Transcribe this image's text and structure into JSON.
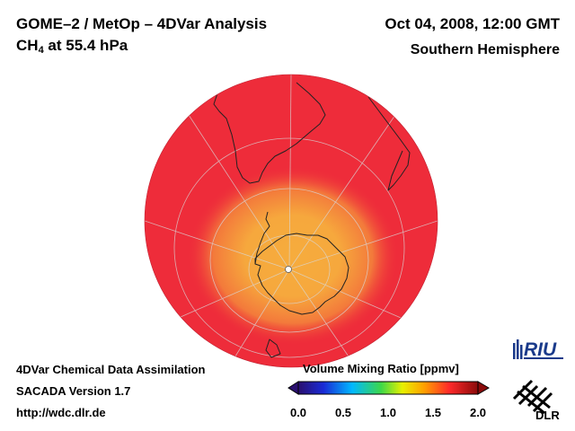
{
  "header": {
    "title_line1": "GOME–2 / MetOp – 4DVar Analysis",
    "species": "CH",
    "species_subscript": "4",
    "level_text": " at 55.4 hPa",
    "datetime": "Oct 04, 2008, 12:00 GMT",
    "region": "Southern Hemisphere"
  },
  "footer": {
    "line1": "4DVar Chemical Data Assimilation",
    "line2": "SACADA Version 1.7",
    "url": "http://wdc.dlr.de"
  },
  "colorbar": {
    "title": "Volume Mixing Ratio [ppmv]",
    "min": 0.0,
    "max": 2.0,
    "ticks": [
      "0.0",
      "0.5",
      "1.0",
      "1.5",
      "2.0"
    ],
    "colors": [
      "#2a0f6e",
      "#1a2bd6",
      "#00b8ff",
      "#3cd84a",
      "#e8f000",
      "#ffa000",
      "#ff2a2a",
      "#8a0a0a"
    ]
  },
  "map": {
    "projection": "orthographic",
    "hemisphere": "south",
    "background_value": 1.9,
    "polar_value": 1.45,
    "colors": {
      "high": "#ee2c3a",
      "mid": "#f4833a",
      "low": "#f6ab3c",
      "land_outline": "#222222",
      "graticule": "#d8d8d8"
    }
  },
  "logos": {
    "riu_text": "RIU",
    "dlr_text": "DLR"
  }
}
